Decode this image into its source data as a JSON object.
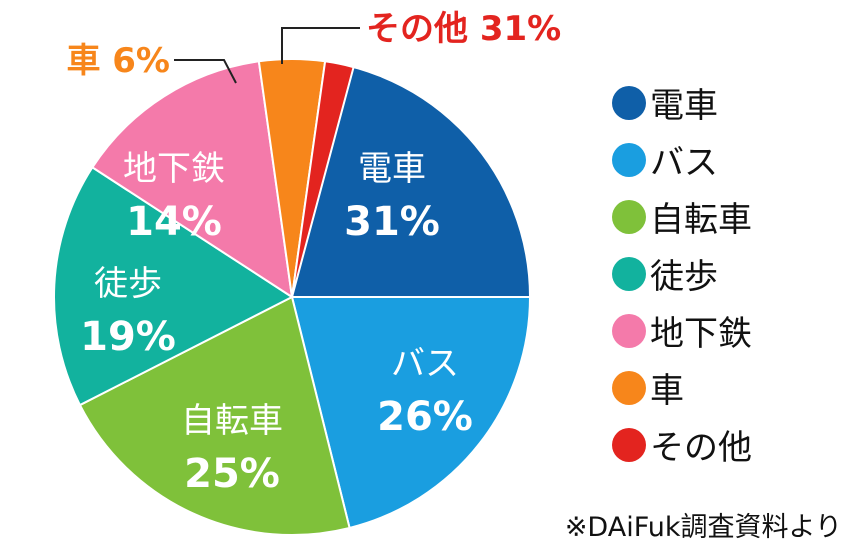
{
  "chart_data": {
    "type": "pie",
    "title": "",
    "slices": [
      {
        "label": "電車",
        "value": 31,
        "display": "31%",
        "color": "#0f5fa8"
      },
      {
        "label": "バス",
        "value": 26,
        "display": "26%",
        "color": "#1a9ee0"
      },
      {
        "label": "自転車",
        "value": 25,
        "display": "25%",
        "color": "#7fc13a"
      },
      {
        "label": "徒歩",
        "value": 19,
        "display": "19%",
        "color": "#12b29e"
      },
      {
        "label": "地下鉄",
        "value": 14,
        "display": "14%",
        "color": "#f47aaa"
      },
      {
        "label": "車",
        "value": 6,
        "display": "6%",
        "color": "#f7861b"
      },
      {
        "label": "その他",
        "value": 31,
        "display": "31%",
        "color": "#e3241f"
      }
    ],
    "callouts": [
      {
        "slice": "車",
        "text": "車 6%",
        "color": "#f7861b"
      },
      {
        "slice": "その他",
        "text": "その他 31%",
        "color": "#e3241f"
      }
    ],
    "legend": {
      "placement": "right"
    }
  },
  "legend_items": [
    {
      "label": "電車",
      "color": "#0f5fa8"
    },
    {
      "label": "バス",
      "color": "#1a9ee0"
    },
    {
      "label": "自転車",
      "color": "#7fc13a"
    },
    {
      "label": "徒歩",
      "color": "#12b29e"
    },
    {
      "label": "地下鉄",
      "color": "#f47aaa"
    },
    {
      "label": "車",
      "color": "#f7861b"
    },
    {
      "label": "その他",
      "color": "#e3241f"
    }
  ],
  "source_note": "※DAiFuk調査資料より"
}
